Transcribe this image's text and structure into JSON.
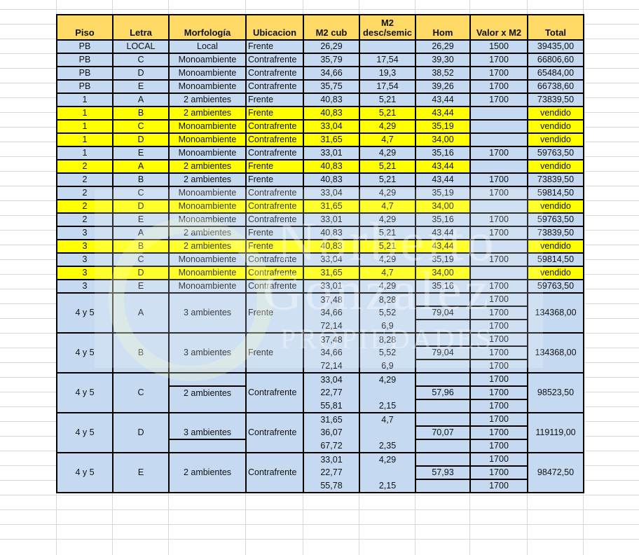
{
  "headers": [
    "Piso",
    "Letra",
    "Morfología",
    "Ubicacion",
    "M2 cub",
    "M2\ndesc/semic",
    "Hom",
    "Valor x M2",
    "Total"
  ],
  "colors": {
    "header": "#ffd966",
    "row": "#c5d9f1",
    "sold": "#ffff00"
  },
  "rows": [
    {
      "piso": "PB",
      "letra": "LOCAL",
      "morf": "Local",
      "ubic": "Frente",
      "m2cub": "26,29",
      "desc": "",
      "hom": "26,29",
      "valor": "1500",
      "total": "39435,00",
      "sold": false
    },
    {
      "piso": "PB",
      "letra": "C",
      "morf": "Monoambiente",
      "ubic": "Contrafrente",
      "m2cub": "35,79",
      "desc": "17,54",
      "hom": "39,30",
      "valor": "1700",
      "total": "66806,60",
      "sold": false
    },
    {
      "piso": "PB",
      "letra": "D",
      "morf": "Monoambiente",
      "ubic": "Contrafrente",
      "m2cub": "34,66",
      "desc": "19,3",
      "hom": "38,52",
      "valor": "1700",
      "total": "65484,00",
      "sold": false
    },
    {
      "piso": "PB",
      "letra": "E",
      "morf": "Monoambiente",
      "ubic": "Contrafrente",
      "m2cub": "35,75",
      "desc": "17,54",
      "hom": "39,26",
      "valor": "1700",
      "total": "66738,60",
      "sold": false
    },
    {
      "piso": "1",
      "letra": "A",
      "morf": "2 ambientes",
      "ubic": "Frente",
      "m2cub": "40,83",
      "desc": "5,21",
      "hom": "43,44",
      "valor": "1700",
      "total": "73839,50",
      "sold": false
    },
    {
      "piso": "1",
      "letra": "B",
      "morf": "2 ambientes",
      "ubic": "Frente",
      "m2cub": "40,83",
      "desc": "5,21",
      "hom": "43,44",
      "valor": "",
      "total": "vendido",
      "sold": true
    },
    {
      "piso": "1",
      "letra": "C",
      "morf": "Monoambiente",
      "ubic": "Contrafrente",
      "m2cub": "33,04",
      "desc": "4,29",
      "hom": "35,19",
      "valor": "",
      "total": "vendido",
      "sold": true
    },
    {
      "piso": "1",
      "letra": "D",
      "morf": "Monoambiente",
      "ubic": "Contrafrente",
      "m2cub": "31,65",
      "desc": "4,7",
      "hom": "34,00",
      "valor": "",
      "total": "vendido",
      "sold": true
    },
    {
      "piso": "1",
      "letra": "E",
      "morf": "Monoambiente",
      "ubic": "Contrafrente",
      "m2cub": "33,01",
      "desc": "4,29",
      "hom": "35,16",
      "valor": "1700",
      "total": "59763,50",
      "sold": false
    },
    {
      "piso": "2",
      "letra": "A",
      "morf": "2 ambientes",
      "ubic": "Frente",
      "m2cub": "40,83",
      "desc": "5,21",
      "hom": "43,44",
      "valor": "",
      "total": "vendido",
      "sold": true
    },
    {
      "piso": "2",
      "letra": "B",
      "morf": "2 ambientes",
      "ubic": "Frente",
      "m2cub": "40,83",
      "desc": "5,21",
      "hom": "43,44",
      "valor": "1700",
      "total": "73839,50",
      "sold": false
    },
    {
      "piso": "2",
      "letra": "C",
      "morf": "Monoambiente",
      "ubic": "Contrafrente",
      "m2cub": "33,04",
      "desc": "4,29",
      "hom": "35,19",
      "valor": "1700",
      "total": "59814,50",
      "sold": false
    },
    {
      "piso": "2",
      "letra": "D",
      "morf": "Monoambiente",
      "ubic": "Contrafrente",
      "m2cub": "31,65",
      "desc": "4,7",
      "hom": "34,00",
      "valor": "",
      "total": "vendido",
      "sold": true
    },
    {
      "piso": "2",
      "letra": "E",
      "morf": "Monoambiente",
      "ubic": "Contrafrente",
      "m2cub": "33,01",
      "desc": "4,29",
      "hom": "35,16",
      "valor": "1700",
      "total": "59763,50",
      "sold": false
    },
    {
      "piso": "3",
      "letra": "A",
      "morf": "2 ambientes",
      "ubic": "Frente",
      "m2cub": "40,83",
      "desc": "5,21",
      "hom": "43,44",
      "valor": "1700",
      "total": "73839,50",
      "sold": false
    },
    {
      "piso": "3",
      "letra": "B",
      "morf": "2 ambientes",
      "ubic": "Frente",
      "m2cub": "40,83",
      "desc": "5,21",
      "hom": "43,44",
      "valor": "",
      "total": "vendido",
      "sold": true
    },
    {
      "piso": "3",
      "letra": "C",
      "morf": "Monoambiente",
      "ubic": "Contrafrente",
      "m2cub": "33,04",
      "desc": "4,29",
      "hom": "35,19",
      "valor": "1700",
      "total": "59814,50",
      "sold": false
    },
    {
      "piso": "3",
      "letra": "D",
      "morf": "Monoambiente",
      "ubic": "Contrafrente",
      "m2cub": "31,65",
      "desc": "4,7",
      "hom": "34,00",
      "valor": "",
      "total": "vendido",
      "sold": true
    },
    {
      "piso": "3",
      "letra": "E",
      "morf": "Monoambiente",
      "ubic": "Contrafrente",
      "m2cub": "33,01",
      "desc": "4,29",
      "hom": "35,16",
      "valor": "1700",
      "total": "59763,50",
      "sold": false
    }
  ],
  "groups": [
    {
      "piso": "4 y 5",
      "letra": "A",
      "morf": "3 ambientes",
      "morf_split": "none",
      "ubic": "Frente",
      "m2cub": [
        "37,48",
        "34,66",
        "72,14"
      ],
      "desc": [
        "8,28",
        "5,52",
        "6,9"
      ],
      "hom": "79,04",
      "valor": [
        "1700",
        "1700",
        "1700"
      ],
      "total": "134368,00"
    },
    {
      "piso": "4 y 5",
      "letra": "B",
      "morf": "3 ambientes",
      "morf_split": "none",
      "ubic": "Frente",
      "m2cub": [
        "37,48",
        "34,66",
        "72,14"
      ],
      "desc": [
        "8,28",
        "5,52",
        "6,9"
      ],
      "hom": "79,04",
      "valor": [
        "1700",
        "1700",
        "1700"
      ],
      "total": "134368,00"
    },
    {
      "piso": "4 y 5",
      "letra": "C",
      "morf": "2 ambientes",
      "morf_split": "top",
      "ubic": "Contrafrente",
      "m2cub": [
        "33,04",
        "22,77",
        "55,81"
      ],
      "desc": [
        "4,29",
        "",
        "2,15"
      ],
      "hom": "57,96",
      "valor": [
        "1700",
        "1700",
        "1700"
      ],
      "total": "98523,50"
    },
    {
      "piso": "4 y 5",
      "letra": "D",
      "morf": "3 ambientes",
      "morf_split": "bottom",
      "ubic": "Contrafrente",
      "m2cub": [
        "31,65",
        "36,07",
        "67,72"
      ],
      "desc": [
        "4,7",
        "",
        "2,35"
      ],
      "hom": "70,07",
      "valor": [
        "1700",
        "1700",
        "1700"
      ],
      "total": "119119,00"
    },
    {
      "piso": "4 y 5",
      "letra": "E",
      "morf": "2 ambientes",
      "morf_split": "none",
      "ubic": "Contrafrente",
      "m2cub": [
        "33,01",
        "22,77",
        "55,78"
      ],
      "desc": [
        "4,29",
        "",
        "2,15"
      ],
      "hom": "57,93",
      "valor": [
        "1700",
        "1700",
        "1700"
      ],
      "total": "98472,50"
    }
  ],
  "watermark": {
    "line1": "Norberto",
    "line2": "Gonzalez",
    "line3": "PROPIEDADES"
  }
}
